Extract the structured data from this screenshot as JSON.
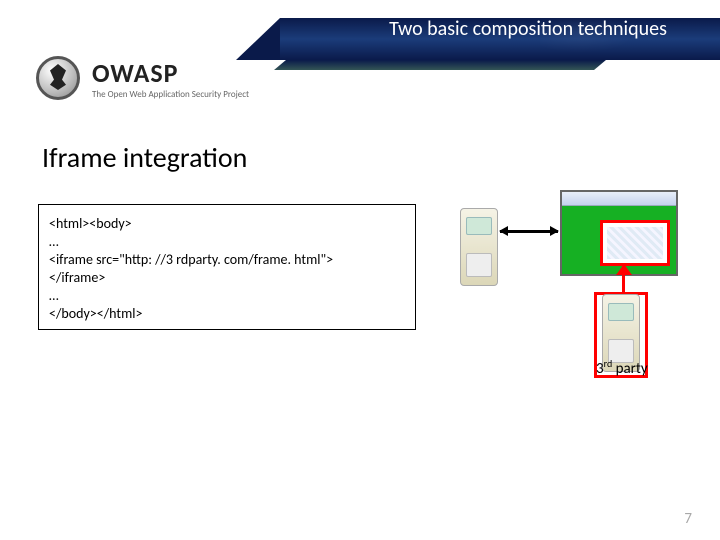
{
  "banner": {
    "title": "Two basic composition techniques",
    "logo_name": "OWASP",
    "logo_tag": "The Open Web Application Security Project"
  },
  "section": {
    "title": "Iframe integration"
  },
  "code": {
    "lines": [
      "<html><body>",
      "…",
      "<iframe src=\"http: //3 rdparty. com/frame. html\">",
      "</iframe>",
      "…",
      "</body></html>"
    ]
  },
  "diagram": {
    "third_party_label_pre": "3",
    "third_party_label_sup": "rd",
    "third_party_label_post": " party",
    "colors": {
      "browser_bg": "#16b023",
      "highlight_red": "#ff0000",
      "arrow_black": "#000000",
      "server_body": "#dcd7b8"
    }
  },
  "page_number": "7"
}
